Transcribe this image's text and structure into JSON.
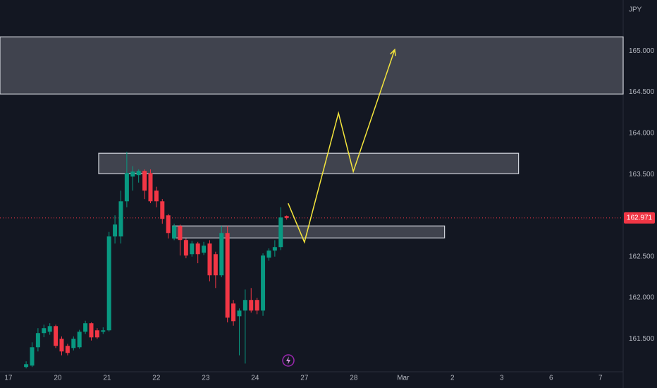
{
  "chart_data": {
    "type": "candlestick",
    "currency": "JPY",
    "up_color": "#089981",
    "down_color": "#f23645",
    "xlim": [
      -0.17,
      12.46
    ],
    "ylim": [
      161.1,
      165.62
    ],
    "xticks": [
      {
        "value": 0,
        "label": "17"
      },
      {
        "value": 1,
        "label": "20"
      },
      {
        "value": 2,
        "label": "21"
      },
      {
        "value": 3,
        "label": "22"
      },
      {
        "value": 4,
        "label": "23"
      },
      {
        "value": 5,
        "label": "24"
      },
      {
        "value": 6,
        "label": "27"
      },
      {
        "value": 7,
        "label": "28"
      },
      {
        "value": 8,
        "label": "Mar"
      },
      {
        "value": 9,
        "label": "2"
      },
      {
        "value": 10,
        "label": "3"
      },
      {
        "value": 11,
        "label": "6"
      },
      {
        "value": 12,
        "label": "7"
      }
    ],
    "yticks": [
      {
        "value": 161.5,
        "label": "161.500"
      },
      {
        "value": 162,
        "label": "162.000"
      },
      {
        "value": 162.5,
        "label": "162.500"
      },
      {
        "value": 163.5,
        "label": "163.500"
      },
      {
        "value": 164,
        "label": "164.000"
      },
      {
        "value": 164.5,
        "label": "164.500"
      },
      {
        "value": 165,
        "label": "165.000"
      }
    ],
    "x": [
      0.36,
      0.48,
      0.6,
      0.72,
      0.84,
      0.96,
      1.08,
      1.2,
      1.32,
      1.44,
      1.56,
      1.68,
      1.8,
      1.92,
      2.04,
      2.16,
      2.28,
      2.4,
      2.52,
      2.64,
      2.76,
      2.88,
      3.0,
      3.12,
      3.24,
      3.36,
      3.48,
      3.6,
      3.72,
      3.84,
      3.96,
      4.08,
      4.2,
      4.32,
      4.44,
      4.56,
      4.68,
      4.8,
      4.92,
      5.04,
      5.16,
      5.28,
      5.4,
      5.52,
      5.64
    ],
    "open": [
      161.158,
      161.175,
      161.398,
      161.57,
      161.587,
      161.655,
      161.501,
      161.415,
      161.389,
      161.398,
      161.587,
      161.69,
      161.604,
      161.587,
      161.604,
      162.745,
      162.745,
      163.173,
      163.473,
      163.491,
      163.542,
      163.516,
      163.302,
      163.173,
      163.002,
      162.719,
      162.873,
      162.702,
      162.53,
      162.659,
      162.547,
      162.659,
      162.53,
      162.273,
      162.787,
      161.93,
      161.775,
      161.844,
      161.973,
      161.973,
      161.844,
      162.487,
      162.573,
      162.616,
      162.993
    ],
    "high": [
      161.227,
      161.458,
      161.63,
      161.673,
      161.69,
      161.673,
      161.53,
      161.44,
      161.53,
      161.61,
      161.72,
      161.7,
      161.63,
      161.64,
      162.8,
      163.002,
      163.302,
      163.774,
      163.6,
      163.56,
      163.56,
      163.56,
      163.35,
      163.2,
      163.02,
      162.9,
      162.89,
      162.72,
      162.69,
      162.68,
      162.68,
      162.7,
      162.56,
      162.873,
      162.873,
      161.973,
      161.87,
      162.1,
      162.118,
      162.0,
      162.54,
      162.6,
      162.7,
      163.1,
      163.0
    ],
    "low": [
      161.141,
      161.158,
      161.347,
      161.52,
      161.55,
      161.389,
      161.3,
      161.3,
      161.36,
      161.38,
      161.56,
      161.48,
      161.5,
      161.56,
      161.59,
      162.659,
      162.659,
      163.1,
      163.302,
      163.4,
      163.2,
      163.15,
      163.1,
      162.9,
      162.72,
      162.7,
      162.513,
      162.48,
      162.5,
      162.42,
      162.52,
      162.2,
      162.118,
      162.25,
      161.7,
      161.66,
      161.3,
      161.2,
      161.82,
      161.8,
      161.78,
      162.45,
      162.5,
      162.58,
      162.95
    ],
    "close": [
      161.192,
      161.398,
      161.57,
      161.63,
      161.655,
      161.415,
      161.347,
      161.329,
      161.501,
      161.587,
      161.69,
      161.518,
      161.518,
      161.604,
      162.745,
      162.89,
      163.173,
      163.516,
      163.534,
      163.542,
      163.302,
      163.173,
      163.173,
      162.959,
      162.787,
      162.873,
      162.702,
      162.513,
      162.659,
      162.53,
      162.633,
      162.273,
      162.273,
      162.787,
      161.758,
      161.715,
      161.844,
      161.973,
      161.844,
      161.844,
      162.513,
      162.573,
      162.616,
      162.976,
      162.971
    ],
    "last_price": 162.971,
    "zones": [
      {
        "x": [
          -0.17,
          12.46
        ],
        "y": [
          164.477,
          165.172
        ]
      },
      {
        "x": [
          1.83,
          10.34
        ],
        "y": [
          163.508,
          163.757
        ]
      },
      {
        "x": [
          3.33,
          8.84
        ],
        "y": [
          162.727,
          162.873
        ]
      }
    ],
    "projection": {
      "color": "#f5e63c",
      "x": [
        5.67,
        6.0,
        6.69,
        6.99,
        7.83
      ],
      "y": [
        163.148,
        162.676,
        164.245,
        163.534,
        165.017
      ]
    }
  }
}
